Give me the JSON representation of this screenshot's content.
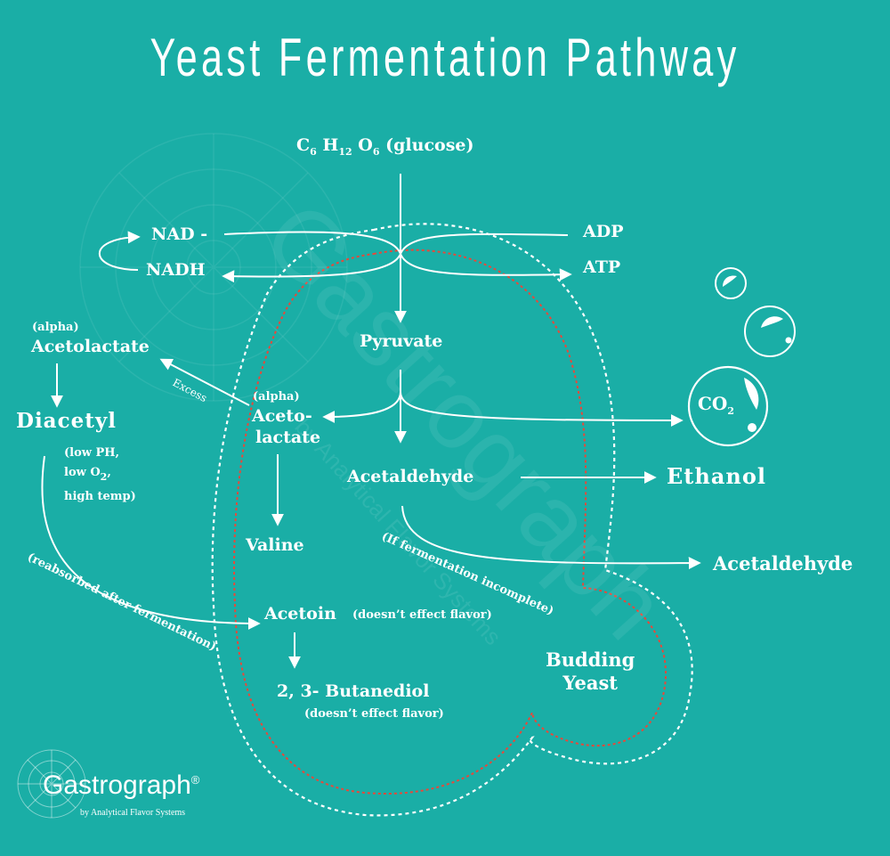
{
  "title": "Yeast Fermentation Pathway",
  "glucose": {
    "c": "C",
    "c_sub": "6",
    "h": "H",
    "h_sub": "12",
    "o": "O",
    "o_sub": "6",
    "name": "(glucose)"
  },
  "cofactors": {
    "nad": "NAD -",
    "nadh": "NADH",
    "adp": "ADP",
    "atp": "ATP"
  },
  "nodes": {
    "pyruvate": "Pyruvate",
    "acetolactate_alpha": "(alpha)",
    "acetolactate_1": "Aceto-",
    "acetolactate_2": "lactate",
    "acetaldehyde": "Acetaldehyde",
    "ethanol": "Ethanol",
    "acetaldehyde_out": "Acetaldehyde",
    "valine": "Valine",
    "acetoin": "Acetoin",
    "acetoin_note": "(doesn’t effect flavor)",
    "butanediol": "2, 3- Butanediol",
    "butanediol_note": "(doesn’t effect flavor)",
    "co2": "CO",
    "co2_sub": "2",
    "budding_1": "Budding",
    "budding_2": "Yeast"
  },
  "left_pathway": {
    "alpha": "(alpha)",
    "acetolactate": "Acetolactate",
    "diacetyl": "Diacetyl",
    "cond_1": "(low PH,",
    "cond_2a": "low O",
    "cond_2_sub": "2",
    "cond_2b": ",",
    "cond_3": "high temp)",
    "excess": "Excess",
    "reabsorbed": "(reabsorbed after fermentation)"
  },
  "incomplete_note": "(If fermentation incomplete)",
  "watermark": {
    "big": "Gastrograph",
    "small": "by Analytical Flavor Systems"
  },
  "logo": {
    "name": "Gastrograph",
    "reg": "®",
    "tagline": "by Analytical Flavor Systems"
  },
  "colors": {
    "background": "#1aaea6",
    "foreground": "#ffffff",
    "membrane_inner": "#e8483a"
  }
}
